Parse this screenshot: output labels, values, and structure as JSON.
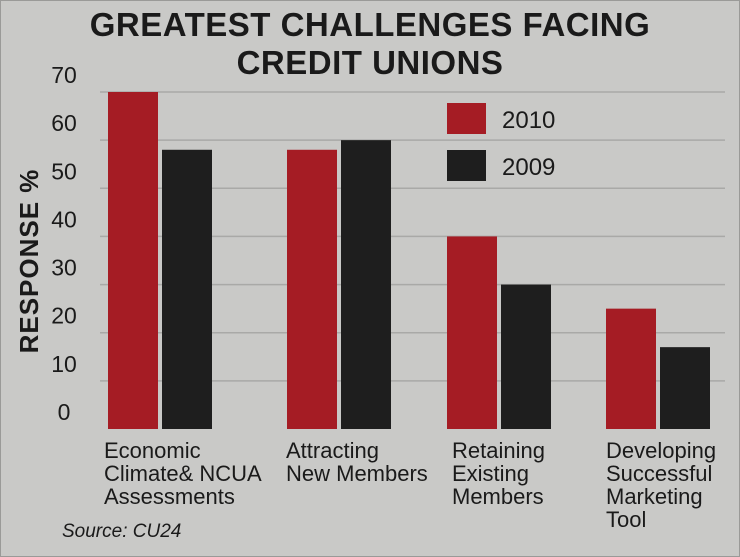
{
  "chart_data": {
    "type": "bar",
    "title_lines": [
      "GREATEST CHALLENGES FACING",
      "CREDIT UNIONS"
    ],
    "ylabel": "RESPONSE %",
    "xlabel": "",
    "ylim": [
      0,
      70
    ],
    "yticks": [
      0,
      10,
      20,
      30,
      40,
      50,
      60,
      70
    ],
    "grid": true,
    "legend_position": "top-right",
    "categories": [
      [
        "Economic",
        "Climate& NCUA",
        "Assessments"
      ],
      [
        "Attracting",
        "New Members"
      ],
      [
        "Retaining",
        "Existing",
        "Members"
      ],
      [
        "Developing",
        "Successful",
        "Marketing",
        "Tool"
      ]
    ],
    "series": [
      {
        "name": "2010",
        "color": "#a51c24",
        "values": [
          70,
          58,
          40,
          25
        ]
      },
      {
        "name": "2009",
        "color": "#1e1e1e",
        "values": [
          58,
          60,
          30,
          17
        ]
      }
    ],
    "source": "Source: CU24"
  }
}
